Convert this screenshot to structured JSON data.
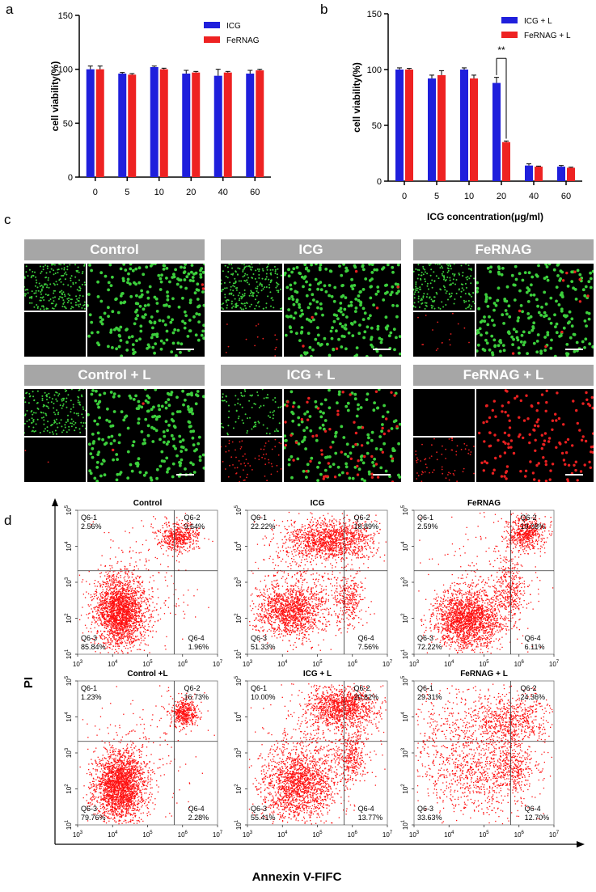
{
  "panel_letters": [
    "a",
    "b",
    "c",
    "d"
  ],
  "chart_data": [
    {
      "type": "bar",
      "panel": "a",
      "categories": [
        "0",
        "5",
        "10",
        "20",
        "40",
        "60"
      ],
      "series": [
        {
          "name": "ICG",
          "color": "#1f1fdc",
          "values": [
            100,
            96,
            102,
            96,
            94,
            96
          ],
          "errors": [
            3,
            1,
            1,
            3,
            6,
            3
          ]
        },
        {
          "name": "FeRNAG",
          "color": "#ee2222",
          "values": [
            100,
            95,
            100,
            97,
            97,
            99
          ],
          "errors": [
            3,
            1,
            1,
            1,
            1,
            1
          ]
        }
      ],
      "xlabel": "ICG concentration(μg/ml)",
      "ylabel": "cell viability(%)",
      "ylim": [
        0,
        150
      ],
      "yticks": [
        "0",
        "50",
        "100",
        "150"
      ],
      "legend": "top-right"
    },
    {
      "type": "bar",
      "panel": "b",
      "categories": [
        "0",
        "5",
        "10",
        "20",
        "40",
        "60"
      ],
      "series": [
        {
          "name": "ICG + L",
          "color": "#1f1fdc",
          "values": [
            100,
            92,
            100,
            88,
            14,
            13
          ],
          "errors": [
            1.5,
            3,
            1.5,
            5,
            1.5,
            1
          ]
        },
        {
          "name": "FeRNAG + L",
          "color": "#ee2222",
          "values": [
            100,
            95,
            92,
            35,
            13,
            12
          ],
          "errors": [
            1,
            4,
            3,
            1,
            0.5,
            0.5
          ]
        }
      ],
      "xlabel": "ICG concentration(μg/ml)",
      "ylabel": "cell viability(%)",
      "ylim": [
        0,
        150
      ],
      "yticks": [
        "0",
        "50",
        "100",
        "150"
      ],
      "legend": "top-right",
      "annotation": "**"
    },
    {
      "type": "scatter",
      "panel": "d",
      "kind": "flow-cytometry-quadrant",
      "xlabel": "Annexin V-FIFC",
      "ylabel": "PI",
      "tick_base": "10",
      "x_exponents": [
        "3",
        "4",
        "5",
        "6",
        "7"
      ],
      "y_exponents": [
        "1",
        "2",
        "3",
        "4",
        "5"
      ],
      "plots": [
        {
          "title": "Control",
          "q1": "Q6-1",
          "q1v": "2.56%",
          "q2": "Q6-2",
          "q2v": "9.64%",
          "q3": "Q6-3",
          "q3v": "85.84%",
          "q4": "Q6-4",
          "q4v": "1.96%"
        },
        {
          "title": "ICG",
          "q1": "Q6-1",
          "q1v": "22.22%",
          "q2": "Q6-2",
          "q2v": "18.89%",
          "q3": "Q6-3",
          "q3v": "51.33%",
          "q4": "Q6-4",
          "q4v": "7.56%"
        },
        {
          "title": "FeRNAG",
          "q1": "Q6-1",
          "q1v": "2.59%",
          "q2": "Q6-2",
          "q2v": "19.08%",
          "q3": "Q6-3",
          "q3v": "72.22%",
          "q4": "Q6-4",
          "q4v": "6.11%"
        },
        {
          "title": "Control +L",
          "q1": "Q6-1",
          "q1v": "1.23%",
          "q2": "Q6-2",
          "q2v": "16.73%",
          "q3": "Q6-3",
          "q3v": "79.76%",
          "q4": "Q6-4",
          "q4v": "2.28%"
        },
        {
          "title": "ICG + L",
          "q1": "Q6-1",
          "q1v": "10.00%",
          "q2": "Q6-2",
          "q2v": "20.82%",
          "q3": "Q6-3",
          "q3v": "55.41%",
          "q4": "Q6-4",
          "q4v": "13.77%"
        },
        {
          "title": "FeRNAG + L",
          "q1": "Q6-1",
          "q1v": "29.31%",
          "q2": "Q6-2",
          "q2v": "24.36%",
          "q3": "Q6-3",
          "q3v": "33.63%",
          "q4": "Q6-4",
          "q4v": "12.70%"
        }
      ]
    }
  ],
  "micrographs": {
    "panel": "c",
    "labels": [
      "Control",
      "ICG",
      "FeRNAG",
      "Control + L",
      "ICG + L",
      "FeRNAG + L"
    ]
  }
}
